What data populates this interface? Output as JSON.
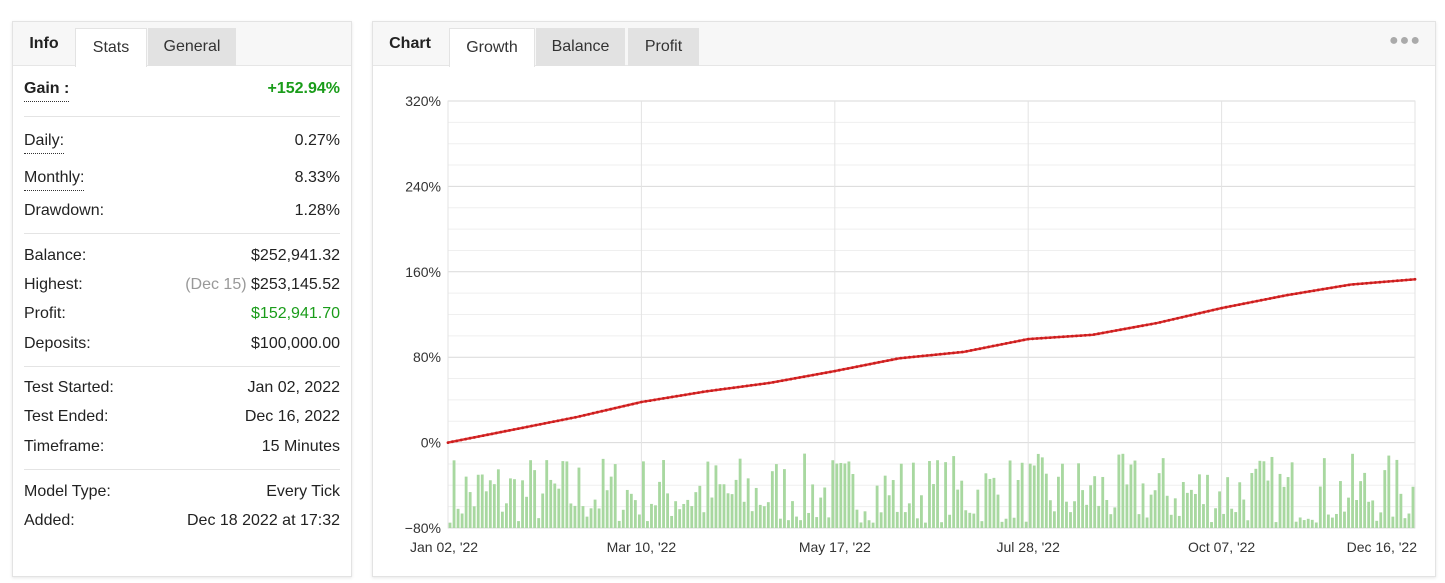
{
  "stats_panel": {
    "tabs": [
      {
        "label": "Info",
        "state": "title"
      },
      {
        "label": "Stats",
        "state": "active"
      },
      {
        "label": "General",
        "state": "inactive"
      }
    ],
    "gain": {
      "label": "Gain :",
      "value": "+152.94%"
    },
    "daily": {
      "label": "Daily:",
      "value": "0.27%"
    },
    "monthly": {
      "label": "Monthly:",
      "value": "8.33%"
    },
    "drawdown": {
      "label": "Drawdown:",
      "value": "1.28%"
    },
    "balance": {
      "label": "Balance:",
      "value": "$252,941.32"
    },
    "highest": {
      "label": "Highest:",
      "date": "(Dec 15)",
      "value": "$253,145.52"
    },
    "profit": {
      "label": "Profit:",
      "value": "$152,941.70"
    },
    "deposits": {
      "label": "Deposits:",
      "value": "$100,000.00"
    },
    "test_started": {
      "label": "Test Started:",
      "value": "Jan 02, 2022"
    },
    "test_ended": {
      "label": "Test Ended:",
      "value": "Dec 16, 2022"
    },
    "timeframe": {
      "label": "Timeframe:",
      "value": "15 Minutes"
    },
    "model_type": {
      "label": "Model Type:",
      "value": "Every Tick"
    },
    "added": {
      "label": "Added:",
      "value": "Dec 18 2022 at 17:32"
    }
  },
  "chart_panel": {
    "tabs": [
      {
        "label": "Chart",
        "state": "title"
      },
      {
        "label": "Growth",
        "state": "active"
      },
      {
        "label": "Balance",
        "state": "inactive"
      },
      {
        "label": "Profit",
        "state": "inactive"
      }
    ],
    "menu_icon": "ellipsis-icon"
  },
  "colors": {
    "gain_green": "#1a9c1a",
    "growth_line": "#e03030",
    "bar_fill": "#a8d8a0",
    "inactive_tab": "#e2e2e2"
  },
  "chart_data": {
    "type": "line",
    "title": "",
    "xlabel": "",
    "ylabel": "",
    "x_tick_labels": [
      "Jan 02, '22",
      "Mar 10, '22",
      "May 17, '22",
      "Jul 28, '22",
      "Oct 07, '22",
      "Dec 16, '22"
    ],
    "y_tick_labels": [
      "320%",
      "240%",
      "160%",
      "80%",
      "0%",
      "−80%"
    ],
    "ylim": [
      -80,
      320
    ],
    "grid": true,
    "series": [
      {
        "type": "line",
        "color": "#e03030",
        "x": [
          "Jan 02, '22",
          "Jan 30, '22",
          "Feb 20, '22",
          "Mar 10, '22",
          "Apr 01, '22",
          "Apr 20, '22",
          "May 17, '22",
          "Jun 07, '22",
          "Jun 28, '22",
          "Jul 28, '22",
          "Aug 20, '22",
          "Sep 14, '22",
          "Oct 07, '22",
          "Oct 30, '22",
          "Nov 22, '22",
          "Dec 16, '22"
        ],
        "values": [
          0,
          12,
          24,
          38,
          48,
          56,
          67,
          79,
          85,
          97,
          101,
          112,
          126,
          138,
          148,
          153
        ]
      },
      {
        "type": "bar",
        "color": "#a8d8a0",
        "count": 240,
        "value_range": [
          -80,
          -10
        ]
      }
    ]
  }
}
